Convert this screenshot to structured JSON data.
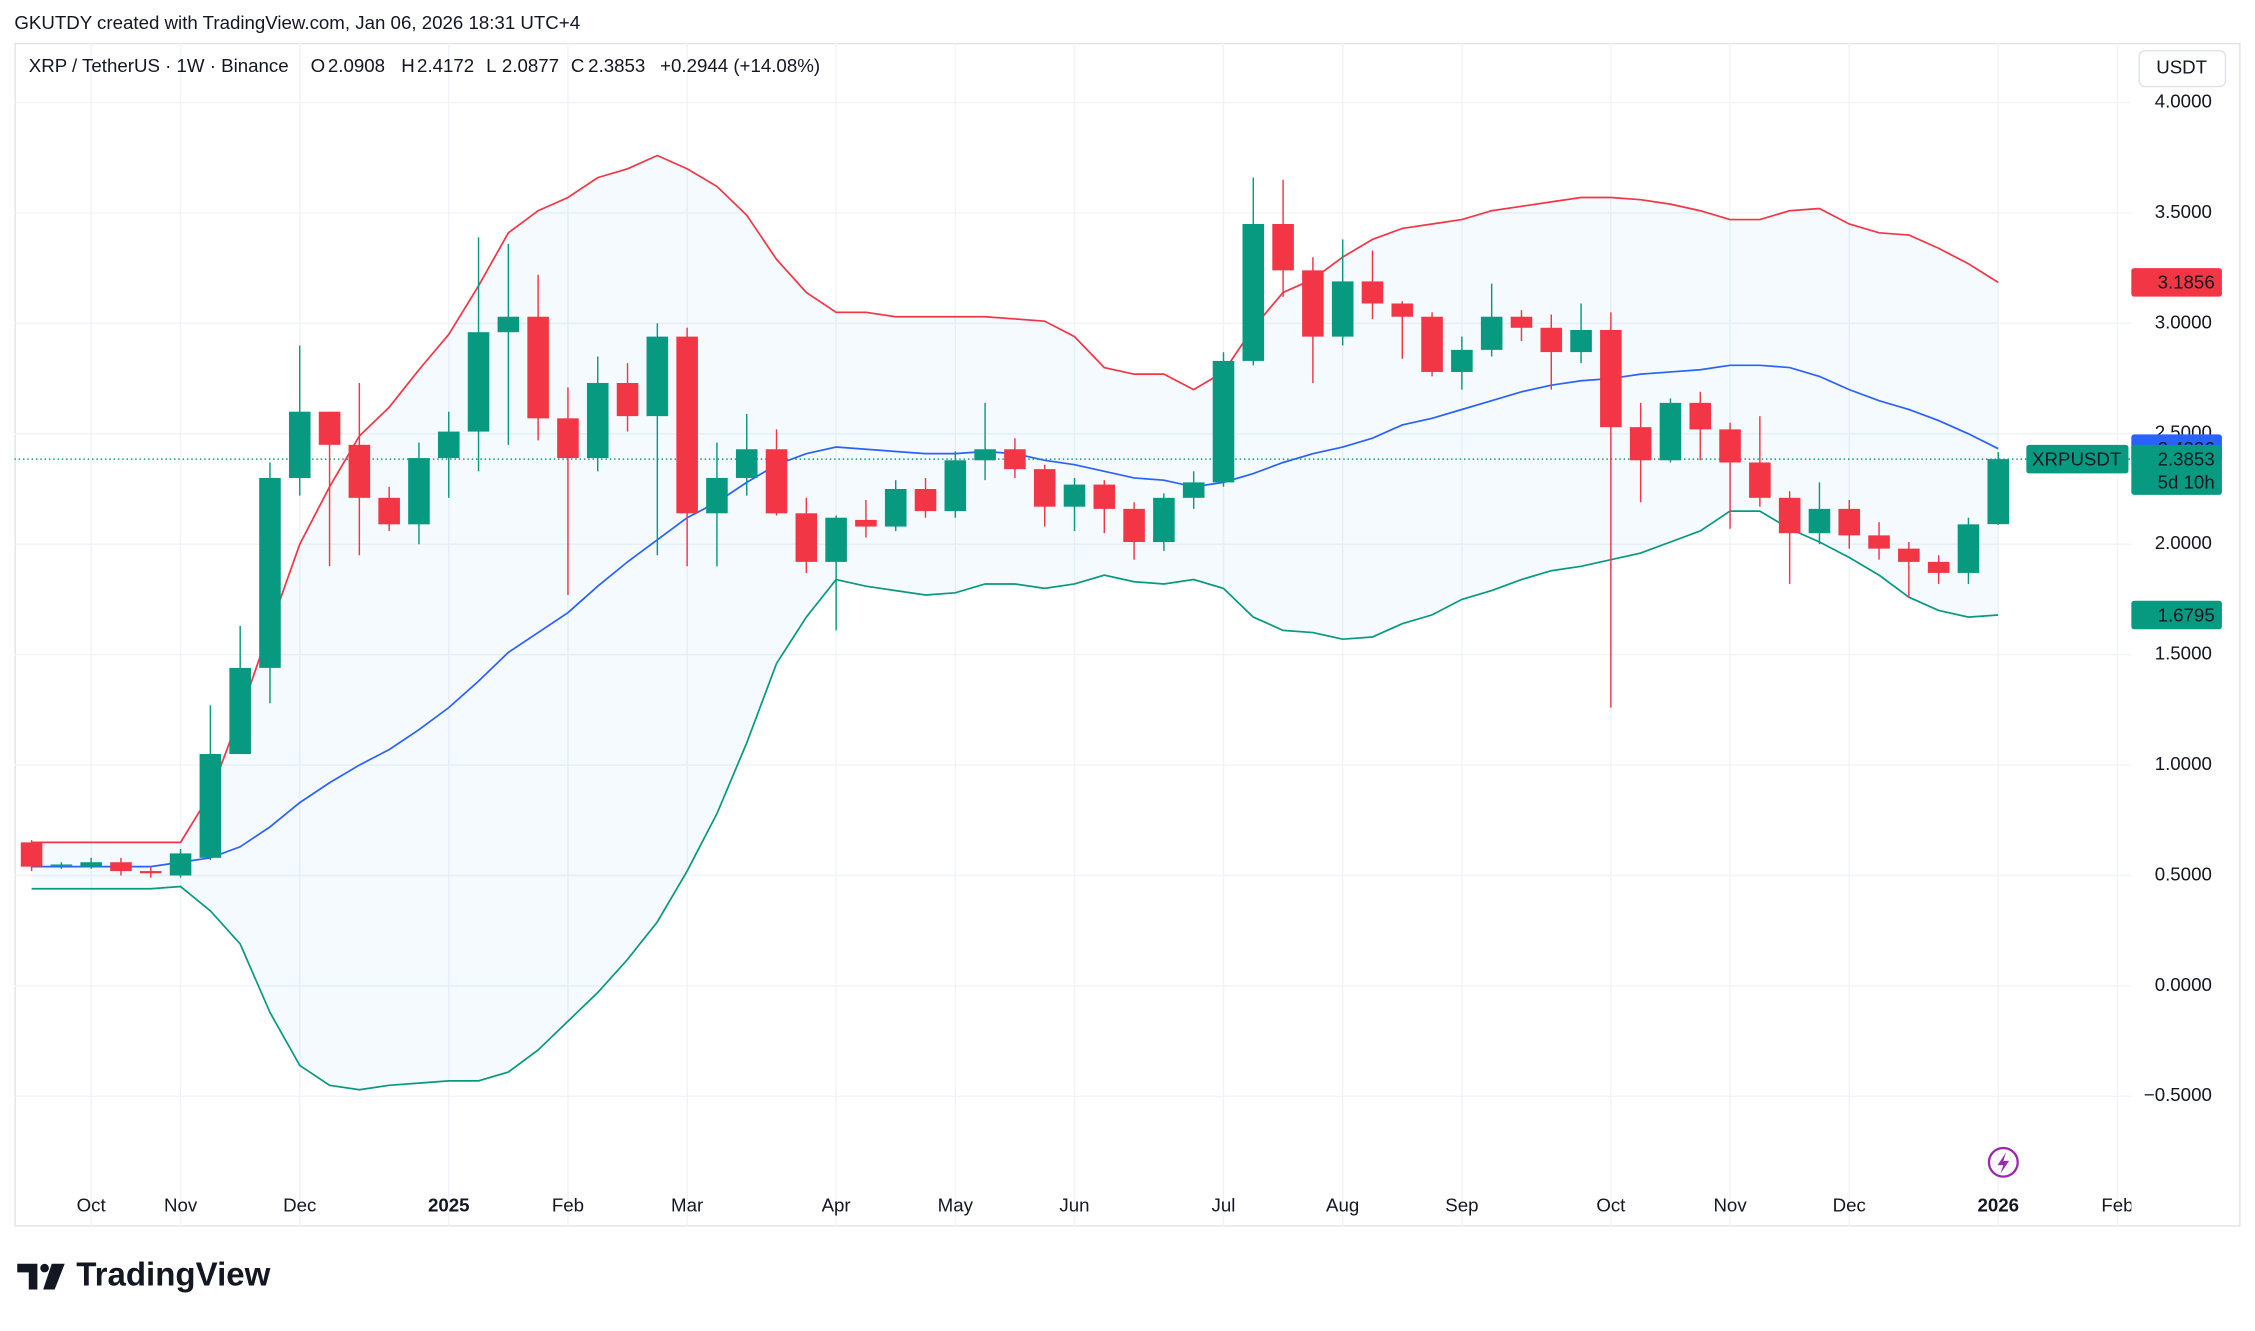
{
  "header": {
    "credit": "GKUTDY created with TradingView.com, Jan 06, 2026 18:31 UTC+4",
    "symbol": "XRP / TetherUS · 1W · Binance",
    "labels": {
      "open": "O",
      "high": "H",
      "low": "L",
      "close": "C"
    },
    "change": "+0.2944 (+14.08%)"
  },
  "chart_data": {
    "type": "candlestick",
    "categories": [
      null,
      null,
      "Oct",
      null,
      null,
      "Nov",
      null,
      null,
      null,
      "Dec",
      null,
      null,
      null,
      null,
      "2025",
      null,
      null,
      null,
      "Feb",
      null,
      null,
      null,
      "Mar",
      null,
      null,
      null,
      null,
      "Apr",
      null,
      null,
      null,
      "May",
      null,
      null,
      null,
      "Jun",
      null,
      null,
      null,
      null,
      "Jul",
      null,
      null,
      null,
      "Aug",
      null,
      null,
      null,
      "Sep",
      null,
      null,
      null,
      null,
      "Oct",
      null,
      null,
      null,
      "Nov",
      null,
      null,
      null,
      "Dec",
      null,
      null,
      null,
      null,
      "2026",
      null,
      null,
      null,
      "Feb"
    ],
    "open": [
      0.65,
      0.55,
      0.54,
      0.56,
      0.52,
      0.5,
      0.58,
      1.05,
      1.44,
      2.3,
      2.6,
      2.45,
      2.21,
      2.09,
      2.39,
      2.51,
      2.96,
      3.03,
      2.57,
      2.39,
      2.73,
      2.58,
      2.94,
      2.14,
      2.3,
      2.43,
      2.14,
      1.92,
      2.11,
      2.08,
      2.25,
      2.15,
      2.38,
      2.43,
      2.34,
      2.17,
      2.27,
      2.16,
      2.01,
      2.21,
      2.28,
      2.83,
      3.45,
      3.24,
      2.94,
      3.19,
      3.09,
      3.03,
      2.78,
      2.88,
      3.03,
      2.98,
      2.87,
      2.97,
      2.53,
      2.38,
      2.64,
      2.52,
      2.37,
      2.21,
      2.05,
      2.16,
      2.04,
      1.98,
      1.92,
      1.87,
      2.0908,
      null,
      null,
      null,
      null
    ],
    "high": [
      0.66,
      0.56,
      0.58,
      0.58,
      0.54,
      0.62,
      1.27,
      1.63,
      2.37,
      2.9,
      2.6,
      2.73,
      2.26,
      2.46,
      2.6,
      3.39,
      3.36,
      3.22,
      2.71,
      2.85,
      2.82,
      3.0,
      2.98,
      2.46,
      2.59,
      2.52,
      2.21,
      2.13,
      2.2,
      2.29,
      2.3,
      2.42,
      2.64,
      2.48,
      2.36,
      2.3,
      2.29,
      2.19,
      2.23,
      2.33,
      2.87,
      3.66,
      3.65,
      3.3,
      3.38,
      3.33,
      3.1,
      3.05,
      2.94,
      3.18,
      3.06,
      3.04,
      3.09,
      3.05,
      2.64,
      2.66,
      2.69,
      2.55,
      2.58,
      2.24,
      2.28,
      2.2,
      2.1,
      2.01,
      1.95,
      2.12,
      2.4172,
      null,
      null,
      null,
      null
    ],
    "low": [
      0.52,
      0.53,
      0.53,
      0.5,
      0.49,
      0.49,
      0.57,
      1.05,
      1.28,
      2.22,
      1.9,
      1.95,
      2.06,
      2.0,
      2.21,
      2.33,
      2.45,
      2.47,
      1.77,
      2.33,
      2.51,
      1.95,
      1.9,
      1.9,
      2.22,
      2.13,
      1.87,
      1.61,
      2.03,
      2.06,
      2.12,
      2.12,
      2.29,
      2.3,
      2.08,
      2.06,
      2.05,
      1.93,
      1.97,
      2.16,
      2.26,
      2.81,
      3.12,
      2.73,
      2.9,
      3.02,
      2.84,
      2.76,
      2.7,
      2.85,
      2.92,
      2.7,
      2.82,
      1.26,
      2.19,
      2.37,
      2.38,
      2.07,
      2.17,
      1.82,
      2.0,
      1.98,
      1.93,
      1.76,
      1.82,
      1.82,
      2.0877,
      null,
      null,
      null,
      null
    ],
    "close": [
      0.54,
      0.55,
      0.56,
      0.52,
      0.51,
      0.6,
      1.05,
      1.44,
      2.3,
      2.6,
      2.45,
      2.21,
      2.09,
      2.39,
      2.51,
      2.96,
      3.03,
      2.57,
      2.39,
      2.73,
      2.58,
      2.94,
      2.14,
      2.3,
      2.43,
      2.14,
      1.92,
      2.12,
      2.08,
      2.25,
      2.15,
      2.38,
      2.43,
      2.34,
      2.17,
      2.27,
      2.16,
      2.01,
      2.21,
      2.28,
      2.83,
      3.45,
      3.24,
      2.94,
      3.19,
      3.09,
      3.03,
      2.78,
      2.88,
      3.03,
      2.98,
      2.87,
      2.97,
      2.53,
      2.38,
      2.64,
      2.52,
      2.37,
      2.21,
      2.05,
      2.16,
      2.04,
      1.98,
      1.92,
      1.87,
      2.09,
      2.3853,
      null,
      null,
      null,
      null
    ],
    "up_color": "#089981",
    "down_color": "#f23645",
    "bands": [
      {
        "color": "#f23645",
        "values": [
          0.65,
          0.65,
          0.65,
          0.65,
          0.65,
          0.65,
          0.87,
          1.23,
          1.62,
          2.0,
          2.26,
          2.49,
          2.62,
          2.79,
          2.95,
          3.17,
          3.41,
          3.51,
          3.57,
          3.66,
          3.7,
          3.76,
          3.7,
          3.62,
          3.49,
          3.29,
          3.14,
          3.05,
          3.05,
          3.03,
          3.03,
          3.03,
          3.03,
          3.02,
          3.01,
          2.94,
          2.8,
          2.77,
          2.77,
          2.7,
          2.78,
          2.98,
          3.14,
          3.2,
          3.3,
          3.38,
          3.43,
          3.45,
          3.47,
          3.51,
          3.53,
          3.55,
          3.57,
          3.57,
          3.56,
          3.54,
          3.51,
          3.47,
          3.47,
          3.51,
          3.52,
          3.45,
          3.41,
          3.4,
          3.34,
          3.27,
          3.1856,
          null,
          null,
          null,
          null
        ]
      },
      {
        "color": "#2962ff",
        "values": [
          0.54,
          0.54,
          0.54,
          0.54,
          0.54,
          0.56,
          0.58,
          0.63,
          0.72,
          0.83,
          0.92,
          1.0,
          1.07,
          1.16,
          1.26,
          1.38,
          1.51,
          1.6,
          1.69,
          1.81,
          1.92,
          2.02,
          2.12,
          2.19,
          2.28,
          2.36,
          2.41,
          2.44,
          2.43,
          2.42,
          2.41,
          2.41,
          2.42,
          2.41,
          2.38,
          2.36,
          2.33,
          2.3,
          2.29,
          2.26,
          2.28,
          2.32,
          2.37,
          2.41,
          2.44,
          2.48,
          2.54,
          2.57,
          2.61,
          2.65,
          2.69,
          2.72,
          2.74,
          2.75,
          2.77,
          2.78,
          2.79,
          2.81,
          2.81,
          2.8,
          2.76,
          2.7,
          2.65,
          2.61,
          2.56,
          2.5,
          2.4326,
          null,
          null,
          null,
          null
        ]
      },
      {
        "color": "#089981",
        "values": [
          0.44,
          0.44,
          0.44,
          0.44,
          0.44,
          0.45,
          0.34,
          0.19,
          -0.12,
          -0.36,
          -0.45,
          -0.47,
          -0.45,
          -0.44,
          -0.43,
          -0.43,
          -0.39,
          -0.29,
          -0.16,
          -0.03,
          0.12,
          0.29,
          0.52,
          0.78,
          1.1,
          1.46,
          1.67,
          1.84,
          1.81,
          1.79,
          1.77,
          1.78,
          1.82,
          1.82,
          1.8,
          1.82,
          1.86,
          1.83,
          1.82,
          1.84,
          1.8,
          1.67,
          1.61,
          1.6,
          1.57,
          1.58,
          1.64,
          1.68,
          1.75,
          1.79,
          1.84,
          1.88,
          1.9,
          1.93,
          1.96,
          2.01,
          2.06,
          2.15,
          2.15,
          2.07,
          2.01,
          1.94,
          1.86,
          1.76,
          1.7,
          1.67,
          1.6795,
          null,
          null,
          null,
          null
        ]
      }
    ],
    "ylim": [
      -1.09,
      4.27
    ],
    "yticks": [
      {
        "value": 4,
        "label": "4.0000"
      },
      {
        "value": 3.5,
        "label": "3.5000"
      },
      {
        "value": 3,
        "label": "3.0000"
      },
      {
        "value": 2.5,
        "label": "2.5000"
      },
      {
        "value": 2,
        "label": "2.0000"
      },
      {
        "value": 1.5,
        "label": "1.5000"
      },
      {
        "value": 1,
        "label": "1.0000"
      },
      {
        "value": 0.5,
        "label": "0.5000"
      },
      {
        "value": 0,
        "label": "0.0000"
      },
      {
        "value": -0.5,
        "label": "−0.5000"
      }
    ],
    "grid": true,
    "currency": "USDT",
    "symbol_label": "XRPUSDT",
    "countdown": "5d 10h"
  },
  "footer": {
    "brand": "TradingView"
  }
}
